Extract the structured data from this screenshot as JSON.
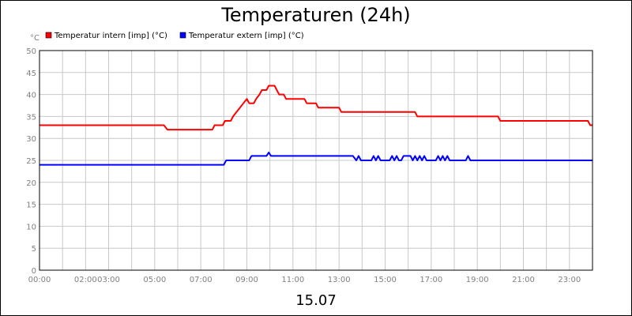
{
  "chart_data": {
    "type": "line",
    "title": "Temperaturen (24h)",
    "xlabel": "15.07",
    "ylabel": "°C",
    "xlim": [
      0,
      24
    ],
    "ylim": [
      0,
      50
    ],
    "y_ticks": [
      0,
      5,
      10,
      15,
      20,
      25,
      30,
      35,
      40,
      45,
      50
    ],
    "x_ticks": [
      {
        "at": 0,
        "label": "00:00"
      },
      {
        "at": 2,
        "label": "02:00"
      },
      {
        "at": 3,
        "label": "03:00"
      },
      {
        "at": 5,
        "label": "05:00"
      },
      {
        "at": 7,
        "label": "07:00"
      },
      {
        "at": 9,
        "label": "09:00"
      },
      {
        "at": 11,
        "label": "11:00"
      },
      {
        "at": 13,
        "label": "13:00"
      },
      {
        "at": 15,
        "label": "15:00"
      },
      {
        "at": 17,
        "label": "17:00"
      },
      {
        "at": 19,
        "label": "19:00"
      },
      {
        "at": 21,
        "label": "21:00"
      },
      {
        "at": 23,
        "label": "23:00"
      }
    ],
    "grid": true,
    "legend_position": "top-left",
    "series": [
      {
        "name": "Temperatur intern [imp] (°C)",
        "color": "#ff0000",
        "points": [
          [
            0,
            33
          ],
          [
            5.4,
            33
          ],
          [
            5.55,
            32
          ],
          [
            7.5,
            32
          ],
          [
            7.6,
            33
          ],
          [
            7.95,
            33
          ],
          [
            8.05,
            34
          ],
          [
            8.3,
            34
          ],
          [
            8.4,
            35
          ],
          [
            8.55,
            36
          ],
          [
            8.7,
            37
          ],
          [
            8.85,
            38
          ],
          [
            9.0,
            39
          ],
          [
            9.1,
            38
          ],
          [
            9.3,
            38
          ],
          [
            9.4,
            39
          ],
          [
            9.55,
            40
          ],
          [
            9.65,
            41
          ],
          [
            9.85,
            41
          ],
          [
            9.95,
            42
          ],
          [
            10.2,
            42
          ],
          [
            10.3,
            41
          ],
          [
            10.4,
            40
          ],
          [
            10.6,
            40
          ],
          [
            10.7,
            39
          ],
          [
            11.5,
            39
          ],
          [
            11.6,
            38
          ],
          [
            12.0,
            38
          ],
          [
            12.1,
            37
          ],
          [
            13.0,
            37
          ],
          [
            13.1,
            36
          ],
          [
            16.3,
            36
          ],
          [
            16.4,
            35
          ],
          [
            19.9,
            35
          ],
          [
            20.0,
            34
          ],
          [
            23.8,
            34
          ],
          [
            23.9,
            33
          ],
          [
            24,
            33
          ]
        ]
      },
      {
        "name": "Temperatur extern [imp] (°C)",
        "color": "#0000ff",
        "points": [
          [
            0,
            24
          ],
          [
            8.0,
            24
          ],
          [
            8.1,
            25
          ],
          [
            9.1,
            25
          ],
          [
            9.2,
            26
          ],
          [
            9.85,
            26
          ],
          [
            9.95,
            26.8
          ],
          [
            10.05,
            26
          ],
          [
            13.6,
            26
          ],
          [
            13.75,
            25
          ],
          [
            13.85,
            26
          ],
          [
            13.95,
            25
          ],
          [
            14.4,
            25
          ],
          [
            14.5,
            26
          ],
          [
            14.6,
            25
          ],
          [
            14.7,
            26
          ],
          [
            14.8,
            25
          ],
          [
            15.2,
            25
          ],
          [
            15.3,
            26
          ],
          [
            15.4,
            25
          ],
          [
            15.5,
            26
          ],
          [
            15.6,
            25
          ],
          [
            15.7,
            25
          ],
          [
            15.8,
            26
          ],
          [
            16.1,
            26
          ],
          [
            16.2,
            25
          ],
          [
            16.3,
            26
          ],
          [
            16.4,
            25
          ],
          [
            16.5,
            26
          ],
          [
            16.6,
            25
          ],
          [
            16.7,
            26
          ],
          [
            16.8,
            25
          ],
          [
            17.2,
            25
          ],
          [
            17.3,
            26
          ],
          [
            17.4,
            25
          ],
          [
            17.5,
            26
          ],
          [
            17.6,
            25
          ],
          [
            17.7,
            26
          ],
          [
            17.8,
            25
          ],
          [
            18.5,
            25
          ],
          [
            18.6,
            26
          ],
          [
            18.7,
            25
          ],
          [
            24,
            25
          ]
        ]
      }
    ]
  }
}
